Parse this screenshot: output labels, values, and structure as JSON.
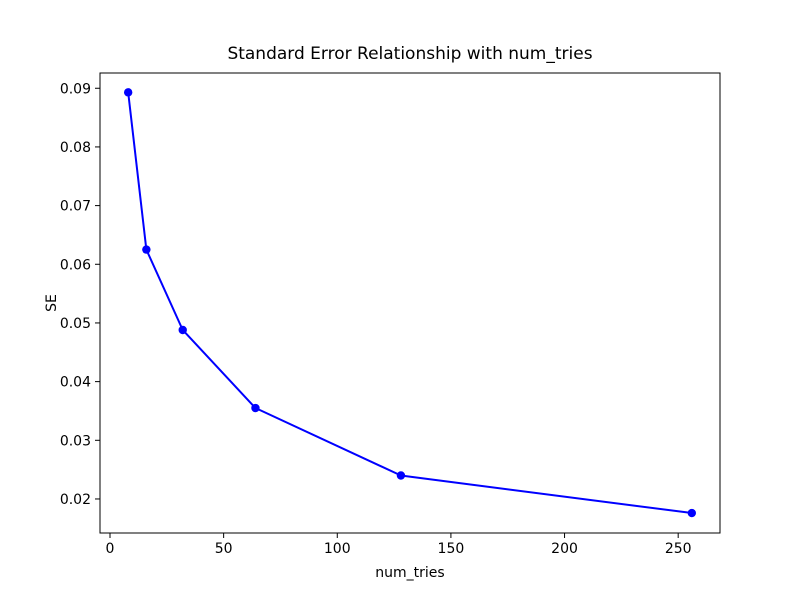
{
  "chart_data": {
    "type": "line",
    "title": "Standard Error Relationship with num_tries",
    "xlabel": "num_tries",
    "ylabel": "SE",
    "series": [
      {
        "name": "SE",
        "x": [
          8,
          16,
          32,
          64,
          128,
          256
        ],
        "y": [
          0.0893,
          0.0625,
          0.0488,
          0.0355,
          0.024,
          0.0176
        ],
        "line_color": "#0000ff",
        "marker": "circle"
      }
    ],
    "xlim": [
      -4.4,
      268.4
    ],
    "ylim": [
      0.0142,
      0.0926
    ],
    "xticks": {
      "values": [
        0,
        50,
        100,
        150,
        200,
        250
      ],
      "labels": [
        "0",
        "50",
        "100",
        "150",
        "200",
        "250"
      ]
    },
    "yticks": {
      "values": [
        0.02,
        0.03,
        0.04,
        0.05,
        0.06,
        0.07,
        0.08,
        0.09
      ],
      "labels": [
        "0.02",
        "0.03",
        "0.04",
        "0.05",
        "0.06",
        "0.07",
        "0.08",
        "0.09"
      ]
    },
    "grid": false,
    "legend_position": "none",
    "axis_color": "#000000",
    "text_color": "#000000",
    "background_color": "#ffffff"
  }
}
